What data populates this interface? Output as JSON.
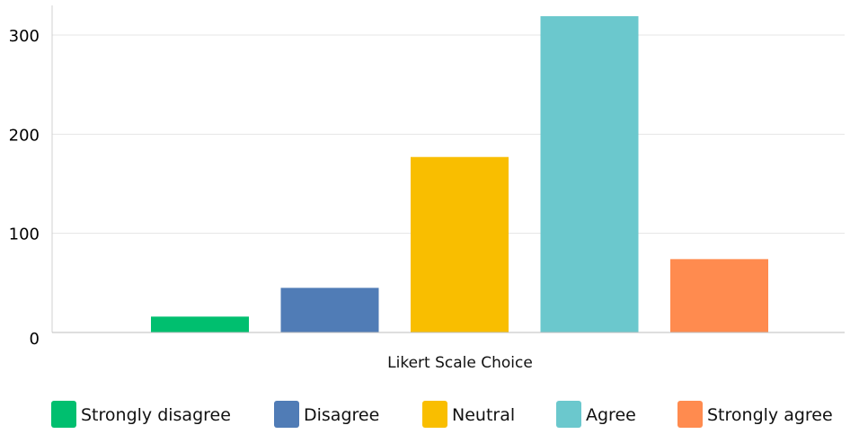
{
  "chart_data": {
    "type": "bar",
    "categories": [
      "Strongly disagree",
      "Disagree",
      "Neutral",
      "Agree",
      "Strongly agree"
    ],
    "values": [
      16,
      45,
      177,
      319,
      74
    ],
    "colors": [
      "#00bf6f",
      "#507cb6",
      "#f9be00",
      "#6bc8cd",
      "#ff8b4f"
    ],
    "title": "",
    "xlabel": "Likert Scale Choice",
    "ylabel": "",
    "ylim": [
      0,
      300
    ],
    "yticks": [
      0,
      100,
      200,
      300
    ],
    "grid": true,
    "legend_position": "bottom"
  }
}
